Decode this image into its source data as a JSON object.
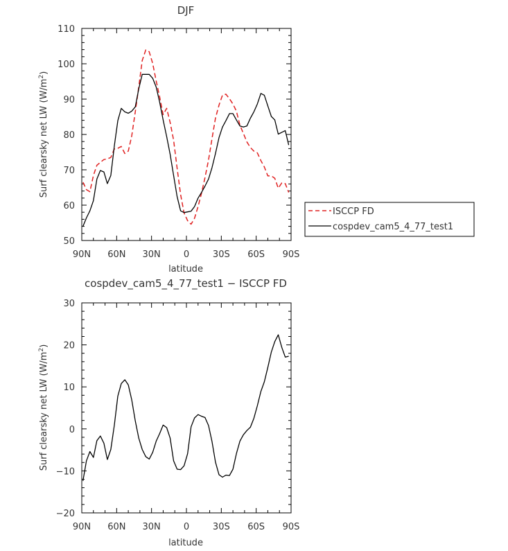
{
  "chart_data": [
    {
      "type": "line",
      "title": "DJF",
      "xlabel": "latitude",
      "ylabel_main": "Surf clearsky net LW (W/m",
      "ylabel_sup": "2",
      "ylabel_end": ")",
      "xlim": [
        90,
        -90
      ],
      "ylim": [
        50,
        110
      ],
      "xticks": [
        90,
        60,
        30,
        0,
        -30,
        -60,
        -90
      ],
      "xticklabels": [
        "90N",
        "60N",
        "30N",
        "0",
        "30S",
        "60S",
        "90S"
      ],
      "yticks": [
        50,
        60,
        70,
        80,
        90,
        100,
        110
      ],
      "yticklabels": [
        "50",
        "60",
        "70",
        "80",
        "90",
        "100",
        "110"
      ],
      "legend_position": "right",
      "series": [
        {
          "name": "ISCCP FD",
          "style": "dashed",
          "color": "#e02020",
          "x": [
            89,
            86,
            83,
            80,
            77,
            74,
            71,
            68,
            65,
            62,
            59,
            56,
            53,
            50,
            47,
            44,
            41,
            38,
            35,
            32,
            29,
            26,
            23,
            20,
            17,
            14,
            11,
            8,
            5,
            2,
            -1,
            -4,
            -7,
            -10,
            -13,
            -16,
            -19,
            -22,
            -25,
            -28,
            -31,
            -34,
            -37,
            -40,
            -43,
            -46,
            -49,
            -52,
            -55,
            -58,
            -61,
            -64,
            -67,
            -70,
            -73,
            -76,
            -79,
            -82,
            -85,
            -88
          ],
          "y": [
            66.5,
            64.4,
            63.8,
            68.4,
            71.3,
            72.1,
            72.9,
            73.1,
            73.5,
            75.9,
            76.1,
            76.6,
            74.6,
            75.3,
            79.6,
            86.4,
            93.4,
            100.9,
            103.9,
            103.4,
            100.1,
            95.1,
            90.6,
            85.6,
            87.4,
            83.4,
            78.4,
            70.4,
            63.0,
            57.8,
            55.6,
            54.6,
            56.3,
            59.6,
            63.4,
            67.8,
            72.8,
            78.8,
            84.6,
            88.3,
            91.1,
            91.4,
            90.1,
            88.6,
            86.6,
            82.6,
            80.3,
            77.9,
            76.3,
            75.3,
            74.8,
            72.6,
            70.8,
            68.3,
            68.3,
            67.6,
            64.8,
            66.3,
            66.1,
            63.6
          ]
        },
        {
          "name": "cospdev_cam5_4_77_test1",
          "style": "solid",
          "color": "#000000",
          "x": [
            89,
            86,
            83,
            80,
            77,
            74,
            71,
            68,
            65,
            62,
            59,
            56,
            53,
            50,
            47,
            44,
            41,
            38,
            35,
            32,
            29,
            26,
            23,
            20,
            17,
            14,
            11,
            8,
            5,
            2,
            -1,
            -4,
            -7,
            -10,
            -13,
            -16,
            -19,
            -22,
            -25,
            -28,
            -31,
            -34,
            -37,
            -40,
            -43,
            -46,
            -49,
            -52,
            -55,
            -58,
            -61,
            -64,
            -67,
            -70,
            -73,
            -76,
            -79,
            -82,
            -85,
            -88
          ],
          "y": [
            54.0,
            56.4,
            58.4,
            61.3,
            67.4,
            69.8,
            69.4,
            66.1,
            68.4,
            76.8,
            83.9,
            87.4,
            86.4,
            86.0,
            86.6,
            87.8,
            92.9,
            97.0,
            97.0,
            97.0,
            95.9,
            93.4,
            89.1,
            84.1,
            79.4,
            74.4,
            68.4,
            62.4,
            58.4,
            57.9,
            58.1,
            58.3,
            59.6,
            62.0,
            63.6,
            65.4,
            67.4,
            70.6,
            74.6,
            79.1,
            82.1,
            83.9,
            85.9,
            85.9,
            84.1,
            82.4,
            82.1,
            82.4,
            84.6,
            86.4,
            88.6,
            91.6,
            91.1,
            88.1,
            85.1,
            84.1,
            80.1,
            80.6,
            81.1,
            77.0
          ]
        }
      ]
    },
    {
      "type": "line",
      "title": "cospdev_cam5_4_77_test1 − ISCCP FD",
      "xlabel": "latitude",
      "ylabel_main": "Surf clearsky net LW (W/m",
      "ylabel_sup": "2",
      "ylabel_end": ")",
      "xlim": [
        90,
        -90
      ],
      "ylim": [
        -20,
        30
      ],
      "xticks": [
        90,
        60,
        30,
        0,
        -30,
        -60,
        -90
      ],
      "xticklabels": [
        "90N",
        "60N",
        "30N",
        "0",
        "30S",
        "60S",
        "90S"
      ],
      "yticks": [
        -20,
        -10,
        0,
        10,
        20,
        30
      ],
      "yticklabels": [
        "−20",
        "−10",
        "0",
        "10",
        "20",
        "30"
      ],
      "series": [
        {
          "style": "solid",
          "color": "#000000",
          "x": [
            89,
            86,
            83,
            80,
            77,
            74,
            71,
            68,
            65,
            62,
            59,
            56,
            53,
            50,
            47,
            44,
            41,
            38,
            35,
            32,
            29,
            26,
            23,
            20,
            17,
            14,
            11,
            8,
            5,
            2,
            -1,
            -4,
            -7,
            -10,
            -13,
            -16,
            -19,
            -22,
            -25,
            -28,
            -31,
            -34,
            -37,
            -40,
            -43,
            -46,
            -49,
            -52,
            -55,
            -58,
            -61,
            -64,
            -67,
            -70,
            -73,
            -76,
            -79,
            -82,
            -85,
            -88
          ],
          "y": [
            -12.4,
            -7.6,
            -5.4,
            -6.8,
            -2.8,
            -1.7,
            -3.4,
            -7.3,
            -4.9,
            0.9,
            7.8,
            10.8,
            11.7,
            10.5,
            6.9,
            1.9,
            -2.2,
            -4.9,
            -6.6,
            -7.2,
            -5.6,
            -2.9,
            -1.1,
            0.9,
            0.3,
            -2.2,
            -7.6,
            -9.6,
            -9.7,
            -8.8,
            -5.9,
            0.5,
            2.6,
            3.4,
            3.0,
            2.7,
            0.8,
            -3.0,
            -7.9,
            -10.9,
            -11.5,
            -11.0,
            -11.1,
            -9.6,
            -5.9,
            -2.9,
            -1.4,
            -0.4,
            0.4,
            2.5,
            5.5,
            8.9,
            11.2,
            14.6,
            18.3,
            20.8,
            22.4,
            19.4,
            17.1,
            17.3
          ]
        }
      ]
    }
  ]
}
